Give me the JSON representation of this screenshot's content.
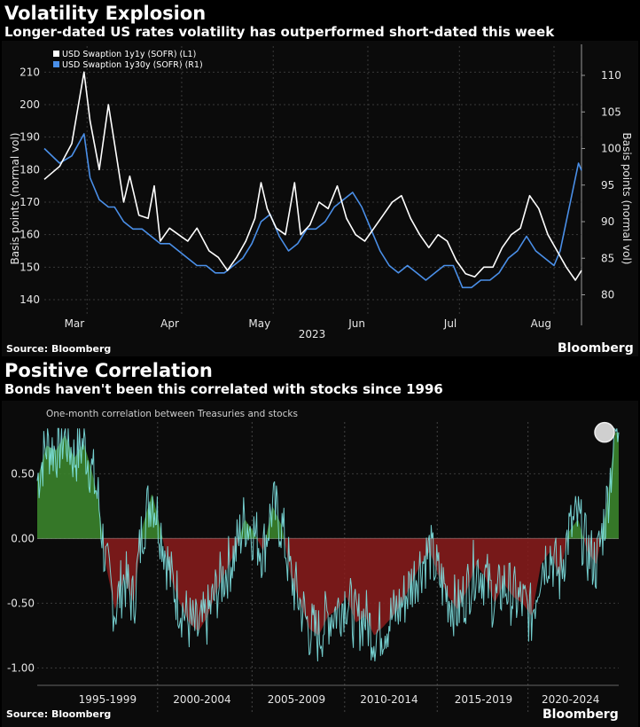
{
  "chart_data": [
    {
      "type": "line",
      "title": "Volatility Explosion",
      "subtitle": "Longer-dated US rates volatility has outperformed short-dated this week",
      "ylabel_left": "Basis points (normal vol)",
      "ylabel_right": "Basis points (normal vol)",
      "year_label": "2023",
      "x_range": [
        "2023-02-15",
        "2023-08-10"
      ],
      "x_ticks": [
        {
          "label": "Mar",
          "date": "2023-03-01"
        },
        {
          "label": "Apr",
          "date": "2023-04-01"
        },
        {
          "label": "May",
          "date": "2023-05-01"
        },
        {
          "label": "Jun",
          "date": "2023-06-01"
        },
        {
          "label": "Jul",
          "date": "2023-07-01"
        },
        {
          "label": "Aug",
          "date": "2023-08-01"
        }
      ],
      "y_left_ticks": [
        "140",
        "150",
        "160",
        "170",
        "180",
        "190",
        "200",
        "210"
      ],
      "y_left_range": [
        137,
        218
      ],
      "y_right_ticks": [
        "80",
        "85",
        "90",
        "95",
        "100",
        "105",
        "110"
      ],
      "y_right_range": [
        78,
        114
      ],
      "grid": true,
      "legend_position": "top-left",
      "source": "Source: Bloomberg",
      "logo": "Bloomberg",
      "series": [
        {
          "name": "USD Swaption 1y1y (SOFR) (L1)",
          "axis": "left",
          "color": "#ffffff",
          "points": [
            [
              "2023-02-15",
              177
            ],
            [
              "2023-02-20",
              181
            ],
            [
              "2023-02-24",
              188
            ],
            [
              "2023-02-28",
              210
            ],
            [
              "2023-03-02",
              195
            ],
            [
              "2023-03-05",
              180
            ],
            [
              "2023-03-08",
              200
            ],
            [
              "2023-03-10",
              188
            ],
            [
              "2023-03-13",
              170
            ],
            [
              "2023-03-15",
              178
            ],
            [
              "2023-03-18",
              166
            ],
            [
              "2023-03-21",
              165
            ],
            [
              "2023-03-23",
              175
            ],
            [
              "2023-03-25",
              158
            ],
            [
              "2023-03-28",
              162
            ],
            [
              "2023-03-31",
              160
            ],
            [
              "2023-04-03",
              158
            ],
            [
              "2023-04-06",
              162
            ],
            [
              "2023-04-10",
              155
            ],
            [
              "2023-04-13",
              153
            ],
            [
              "2023-04-16",
              149
            ],
            [
              "2023-04-19",
              153
            ],
            [
              "2023-04-22",
              158
            ],
            [
              "2023-04-25",
              165
            ],
            [
              "2023-04-27",
              176
            ],
            [
              "2023-04-29",
              168
            ],
            [
              "2023-05-02",
              162
            ],
            [
              "2023-05-05",
              160
            ],
            [
              "2023-05-08",
              176
            ],
            [
              "2023-05-10",
              160
            ],
            [
              "2023-05-13",
              163
            ],
            [
              "2023-05-16",
              170
            ],
            [
              "2023-05-19",
              168
            ],
            [
              "2023-05-22",
              175
            ],
            [
              "2023-05-25",
              165
            ],
            [
              "2023-05-28",
              160
            ],
            [
              "2023-05-31",
              158
            ],
            [
              "2023-06-03",
              162
            ],
            [
              "2023-06-06",
              166
            ],
            [
              "2023-06-09",
              170
            ],
            [
              "2023-06-12",
              172
            ],
            [
              "2023-06-15",
              165
            ],
            [
              "2023-06-18",
              160
            ],
            [
              "2023-06-21",
              156
            ],
            [
              "2023-06-24",
              160
            ],
            [
              "2023-06-27",
              158
            ],
            [
              "2023-06-30",
              152
            ],
            [
              "2023-07-03",
              148
            ],
            [
              "2023-07-06",
              147
            ],
            [
              "2023-07-09",
              150
            ],
            [
              "2023-07-12",
              150
            ],
            [
              "2023-07-15",
              156
            ],
            [
              "2023-07-18",
              160
            ],
            [
              "2023-07-21",
              162
            ],
            [
              "2023-07-24",
              172
            ],
            [
              "2023-07-27",
              168
            ],
            [
              "2023-07-30",
              160
            ],
            [
              "2023-08-02",
              155
            ],
            [
              "2023-08-05",
              150
            ],
            [
              "2023-08-08",
              146
            ],
            [
              "2023-08-10",
              149
            ]
          ]
        },
        {
          "name": "USD Swaption 1y30y (SOFR) (R1)",
          "axis": "right",
          "color": "#4a8fe8",
          "points": [
            [
              "2023-02-15",
              100
            ],
            [
              "2023-02-20",
              98
            ],
            [
              "2023-02-24",
              99
            ],
            [
              "2023-02-28",
              102
            ],
            [
              "2023-03-02",
              96
            ],
            [
              "2023-03-05",
              93
            ],
            [
              "2023-03-08",
              92
            ],
            [
              "2023-03-10",
              92
            ],
            [
              "2023-03-13",
              90
            ],
            [
              "2023-03-16",
              89
            ],
            [
              "2023-03-19",
              89
            ],
            [
              "2023-03-22",
              88
            ],
            [
              "2023-03-25",
              87
            ],
            [
              "2023-03-28",
              87
            ],
            [
              "2023-03-31",
              86
            ],
            [
              "2023-04-03",
              85
            ],
            [
              "2023-04-06",
              84
            ],
            [
              "2023-04-09",
              84
            ],
            [
              "2023-04-12",
              83
            ],
            [
              "2023-04-15",
              83
            ],
            [
              "2023-04-18",
              84
            ],
            [
              "2023-04-21",
              85
            ],
            [
              "2023-04-24",
              87
            ],
            [
              "2023-04-27",
              90
            ],
            [
              "2023-04-30",
              91
            ],
            [
              "2023-05-03",
              88
            ],
            [
              "2023-05-06",
              86
            ],
            [
              "2023-05-09",
              87
            ],
            [
              "2023-05-12",
              89
            ],
            [
              "2023-05-15",
              89
            ],
            [
              "2023-05-18",
              90
            ],
            [
              "2023-05-21",
              92
            ],
            [
              "2023-05-24",
              93
            ],
            [
              "2023-05-27",
              94
            ],
            [
              "2023-05-30",
              92
            ],
            [
              "2023-06-02",
              89
            ],
            [
              "2023-06-05",
              86
            ],
            [
              "2023-06-08",
              84
            ],
            [
              "2023-06-11",
              83
            ],
            [
              "2023-06-14",
              84
            ],
            [
              "2023-06-17",
              83
            ],
            [
              "2023-06-20",
              82
            ],
            [
              "2023-06-23",
              83
            ],
            [
              "2023-06-26",
              84
            ],
            [
              "2023-06-29",
              84
            ],
            [
              "2023-07-02",
              81
            ],
            [
              "2023-07-05",
              81
            ],
            [
              "2023-07-08",
              82
            ],
            [
              "2023-07-11",
              82
            ],
            [
              "2023-07-14",
              83
            ],
            [
              "2023-07-17",
              85
            ],
            [
              "2023-07-20",
              86
            ],
            [
              "2023-07-23",
              88
            ],
            [
              "2023-07-26",
              86
            ],
            [
              "2023-07-29",
              85
            ],
            [
              "2023-08-01",
              84
            ],
            [
              "2023-08-03",
              86
            ],
            [
              "2023-08-05",
              90
            ],
            [
              "2023-08-07",
              94
            ],
            [
              "2023-08-09",
              98
            ],
            [
              "2023-08-10",
              97
            ]
          ]
        }
      ]
    },
    {
      "type": "area",
      "title": "Positive Correlation",
      "subtitle": "Bonds haven't been this correlated with stocks since 1996",
      "annotation": "One-month correlation between Treasuries and stocks",
      "x_range": [
        1993.3,
        2024.7
      ],
      "x_ticks": [
        "1995-1999",
        "2000-2004",
        "2005-2009",
        "2010-2014",
        "2015-2019",
        "2020-2024"
      ],
      "x_tick_centers": [
        1997.1,
        2002.2,
        2007.3,
        2012.3,
        2017.4,
        2022.1
      ],
      "x_tick_dividers": [
        1999.8,
        2004.9,
        2009.9,
        2014.9,
        2019.8
      ],
      "y_ticks": [
        "0.50",
        "0.00",
        "-0.50",
        "-1.00"
      ],
      "y_range": [
        -1.08,
        0.9
      ],
      "grid": true,
      "positive_fill": "#3d8b2e",
      "negative_fill": "#8b1c1c",
      "line_color": "#7fe3e3",
      "latest_value": 0.82,
      "source": "Source: Bloomberg",
      "logo": "Bloomberg",
      "points": [
        [
          1993.3,
          0.45
        ],
        [
          1993.8,
          0.72
        ],
        [
          1994.3,
          0.68
        ],
        [
          1994.8,
          0.8
        ],
        [
          1995.3,
          0.62
        ],
        [
          1995.8,
          0.74
        ],
        [
          1996.2,
          0.55
        ],
        [
          1996.6,
          0.3
        ],
        [
          1997.0,
          -0.2
        ],
        [
          1997.5,
          -0.55
        ],
        [
          1998.0,
          -0.3
        ],
        [
          1998.5,
          -0.5
        ],
        [
          1999.0,
          0.1
        ],
        [
          1999.5,
          0.35
        ],
        [
          2000.0,
          0.05
        ],
        [
          2000.5,
          -0.3
        ],
        [
          2001.0,
          -0.5
        ],
        [
          2001.5,
          -0.65
        ],
        [
          2002.0,
          -0.72
        ],
        [
          2002.5,
          -0.6
        ],
        [
          2003.0,
          -0.4
        ],
        [
          2003.5,
          -0.25
        ],
        [
          2004.0,
          -0.1
        ],
        [
          2004.5,
          0.15
        ],
        [
          2005.0,
          0.05
        ],
        [
          2005.5,
          -0.1
        ],
        [
          2006.0,
          0.25
        ],
        [
          2006.5,
          0.1
        ],
        [
          2007.0,
          -0.3
        ],
        [
          2007.5,
          -0.5
        ],
        [
          2008.0,
          -0.7
        ],
        [
          2008.5,
          -0.75
        ],
        [
          2009.0,
          -0.6
        ],
        [
          2009.5,
          -0.55
        ],
        [
          2010.0,
          -0.45
        ],
        [
          2010.5,
          -0.65
        ],
        [
          2011.0,
          -0.6
        ],
        [
          2011.5,
          -0.75
        ],
        [
          2012.0,
          -0.68
        ],
        [
          2012.5,
          -0.6
        ],
        [
          2013.0,
          -0.5
        ],
        [
          2013.5,
          -0.35
        ],
        [
          2014.0,
          -0.2
        ],
        [
          2014.5,
          -0.1
        ],
        [
          2015.0,
          -0.3
        ],
        [
          2015.5,
          -0.45
        ],
        [
          2016.0,
          -0.55
        ],
        [
          2016.5,
          -0.4
        ],
        [
          2017.0,
          -0.2
        ],
        [
          2017.5,
          -0.3
        ],
        [
          2018.0,
          -0.5
        ],
        [
          2018.5,
          -0.35
        ],
        [
          2019.0,
          -0.45
        ],
        [
          2019.5,
          -0.5
        ],
        [
          2020.0,
          -0.6
        ],
        [
          2020.5,
          -0.2
        ],
        [
          2021.0,
          -0.1
        ],
        [
          2021.5,
          -0.3
        ],
        [
          2022.0,
          0.05
        ],
        [
          2022.5,
          0.15
        ],
        [
          2023.0,
          -0.1
        ],
        [
          2023.5,
          -0.2
        ],
        [
          2024.0,
          0.2
        ],
        [
          2024.3,
          0.55
        ],
        [
          2024.5,
          0.82
        ]
      ]
    }
  ]
}
